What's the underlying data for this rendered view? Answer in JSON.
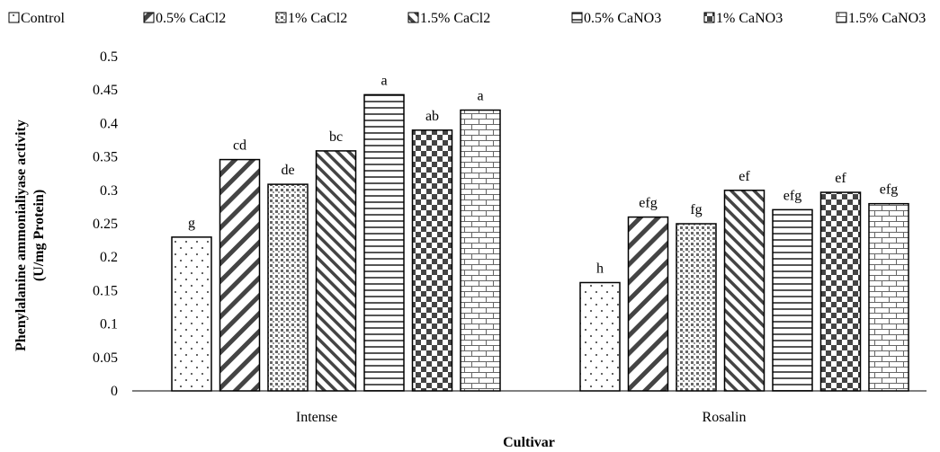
{
  "chart_data": {
    "type": "bar",
    "xlabel": "Cultivar",
    "ylabel_lines": [
      "Phenylalanine ammonialiyase activity",
      "(U/mg Protein)"
    ],
    "categories": [
      "Intense",
      "Rosalin"
    ],
    "ylim": [
      0,
      0.5
    ],
    "yticks": [
      "0",
      "0.05",
      "0.1",
      "0.15",
      "0.2",
      "0.25",
      "0.3",
      "0.35",
      "0.4",
      "0.45",
      "0.5"
    ],
    "grid": false,
    "legend_position": "top",
    "series": [
      {
        "name": "Control",
        "pattern": "dots",
        "values": [
          0.23,
          0.162
        ],
        "labels": [
          "g",
          "h"
        ]
      },
      {
        "name": "0.5% CaCl2",
        "pattern": "wide-diagonal",
        "values": [
          0.346,
          0.26
        ],
        "labels": [
          "cd",
          "efg"
        ]
      },
      {
        "name": "1% CaCl2",
        "pattern": "dense-dots",
        "values": [
          0.309,
          0.25
        ],
        "labels": [
          "de",
          "fg"
        ]
      },
      {
        "name": "1.5% CaCl2",
        "pattern": "narrow-diagonal",
        "values": [
          0.359,
          0.3
        ],
        "labels": [
          "bc",
          "ef"
        ]
      },
      {
        "name": "0.5% CaNO3",
        "pattern": "horizontal-lines",
        "values": [
          0.443,
          0.271
        ],
        "labels": [
          "a",
          "efg"
        ]
      },
      {
        "name": "1% CaNO3",
        "pattern": "checkerboard",
        "values": [
          0.39,
          0.297
        ],
        "labels": [
          "ab",
          "ef"
        ]
      },
      {
        "name": "1.5% CaNO3",
        "pattern": "brick",
        "values": [
          0.42,
          0.28
        ],
        "labels": [
          "a",
          "efg"
        ]
      }
    ]
  }
}
